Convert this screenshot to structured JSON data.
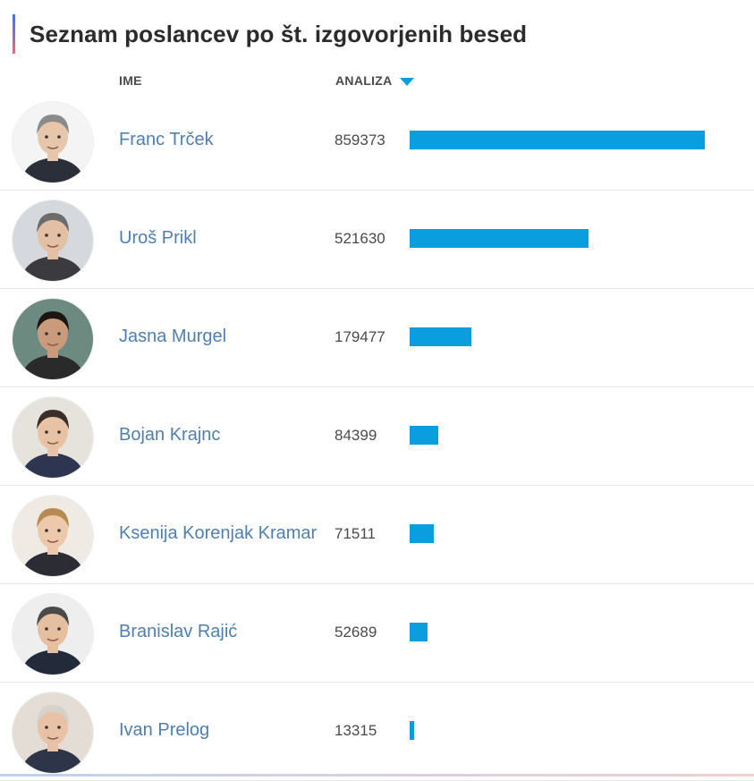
{
  "title": "Seznam poslancev po št. izgovorjenih besed",
  "columns": {
    "name": "IME",
    "analysis": "ANALIZA"
  },
  "sort": {
    "column": "ANALIZA",
    "direction": "descending",
    "icon": "sort-down-icon"
  },
  "colors": {
    "bar": "#0a9ede",
    "name_link": "#4f7fb0",
    "sort_icon": "#0a9ede"
  },
  "rows": [
    {
      "name": "Franc Trček",
      "value": "859373"
    },
    {
      "name": "Uroš Prikl",
      "value": "521630"
    },
    {
      "name": "Jasna Murgel",
      "value": "179477"
    },
    {
      "name": "Bojan Krajnc",
      "value": "84399"
    },
    {
      "name": "Ksenija Korenjak Kramar",
      "value": "71511"
    },
    {
      "name": "Branislav Rajić",
      "value": "52689"
    },
    {
      "name": "Ivan Prelog",
      "value": "13315"
    }
  ],
  "chart_data": {
    "type": "bar",
    "orientation": "horizontal",
    "categories": [
      "Franc Trček",
      "Uroš Prikl",
      "Jasna Murgel",
      "Bojan Krajnc",
      "Ksenija Korenjak Kramar",
      "Branislav Rajić",
      "Ivan Prelog"
    ],
    "values": [
      859373,
      521630,
      179477,
      84399,
      71511,
      52689,
      13315
    ],
    "title": "Seznam poslancev po št. izgovorjenih besed",
    "xlabel": "",
    "ylabel": "",
    "grid": false
  }
}
